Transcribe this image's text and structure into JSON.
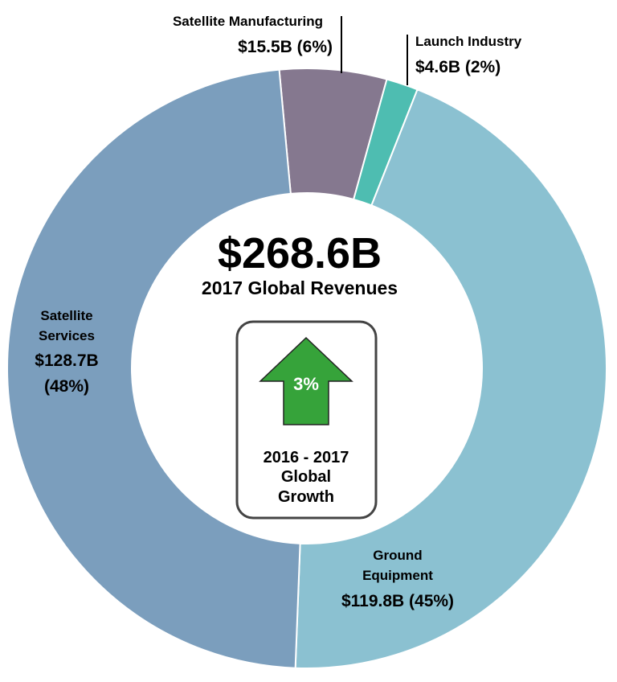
{
  "chart_data": {
    "type": "pie",
    "center_title": "$268.6B",
    "center_subtitle": "2017 Global Revenues",
    "slices": [
      {
        "name_lines": [
          "Satellite Manufacturing"
        ],
        "value_label": "$15.5B (6%)",
        "value": 15.5,
        "percent": 6,
        "color": "#85788f"
      },
      {
        "name_lines": [
          "Launch Industry"
        ],
        "value_label": "$4.6B (2%)",
        "value": 4.6,
        "percent": 2,
        "color": "#4ebdb1"
      },
      {
        "name_lines": [
          "Ground",
          "Equipment"
        ],
        "value_label": "$119.8B (45%)",
        "value": 119.8,
        "percent": 45,
        "color": "#8bc1d1"
      },
      {
        "name_lines": [
          "Satellite",
          "Services"
        ],
        "value_label_lines": [
          "$128.7B",
          "(48%)"
        ],
        "value": 128.7,
        "percent": 48,
        "color": "#7b9ebd"
      }
    ],
    "growth": {
      "percent_label": "3%",
      "caption_lines": [
        "2016 - 2017",
        "Global",
        "Growth"
      ],
      "arrow_color": "#36a33a"
    }
  }
}
